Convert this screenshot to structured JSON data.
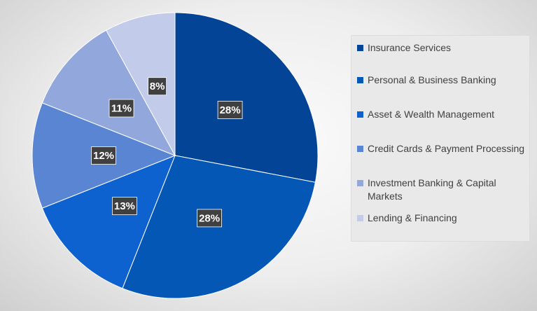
{
  "chart_data": {
    "type": "pie",
    "title": "",
    "slices": [
      {
        "label": "Insurance Services",
        "value": 28,
        "display": "28%",
        "color": "#034496"
      },
      {
        "label": "Personal & Business Banking",
        "value": 28,
        "display": "28%",
        "color": "#0457b4"
      },
      {
        "label": "Asset & Wealth Management",
        "value": 13,
        "display": "13%",
        "color": "#0d62cf"
      },
      {
        "label": "Credit Cards & Payment Processing",
        "value": 12,
        "display": "12%",
        "color": "#5a85d3"
      },
      {
        "label": "Investment Banking & Capital Markets",
        "value": 11,
        "display": "11%",
        "color": "#92a8dd"
      },
      {
        "label": "Lending & Financing",
        "value": 8,
        "display": "8%",
        "color": "#c2cbe9"
      }
    ],
    "legend_position": "right"
  }
}
